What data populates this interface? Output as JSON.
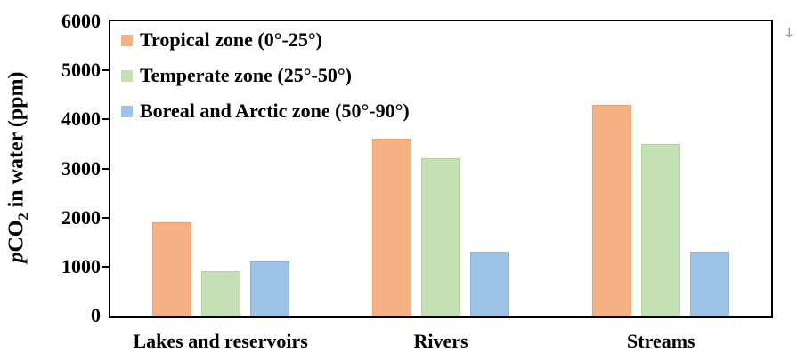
{
  "chart_data": {
    "type": "bar",
    "title": "",
    "categories": [
      "Lakes and reservoirs",
      "Rivers",
      "Streams"
    ],
    "series": [
      {
        "name": "Tropical zone (0°-25°)",
        "color": "#F4B183",
        "border_color": "#EDA06A",
        "values": [
          1900,
          3600,
          4300
        ]
      },
      {
        "name": "Temperate zone (25°-50°)",
        "color": "#C5E0B4",
        "border_color": "#B2D49C",
        "values": [
          900,
          3200,
          3500
        ]
      },
      {
        "name": "Boreal and Arctic zone (50°-90°)",
        "color": "#9DC3E6",
        "border_color": "#8AB5DE",
        "values": [
          1100,
          1300,
          1300
        ]
      }
    ],
    "ylabel_parts": {
      "italic": "p",
      "text": "CO",
      "subscript": "2",
      "rest": " in water (ppm)"
    },
    "xlabel": "",
    "ylim": [
      0,
      6000
    ],
    "yticks": [
      0,
      1000,
      2000,
      3000,
      4000,
      5000,
      6000
    ],
    "grid": false,
    "legend_position": "inside-top-left",
    "axis_color": "#000000",
    "background_color": "#ffffff"
  },
  "decorations": {
    "down_arrow": "↓"
  }
}
